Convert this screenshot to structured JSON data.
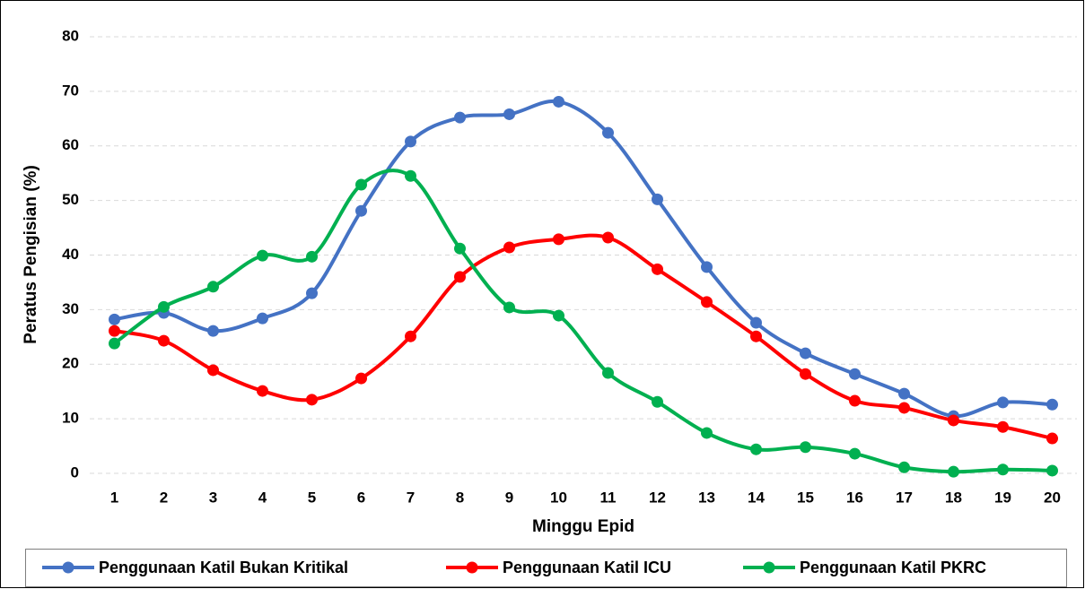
{
  "chart_data": {
    "type": "line",
    "xlabel": "Minggu Epid",
    "ylabel": "Peratus Pengisian (%)",
    "x": [
      1,
      2,
      3,
      4,
      5,
      6,
      7,
      8,
      9,
      10,
      11,
      12,
      13,
      14,
      15,
      16,
      17,
      18,
      19,
      20
    ],
    "xlim": [
      0.5,
      20.5
    ],
    "ylim": [
      0,
      80
    ],
    "yticks": [
      0,
      10,
      20,
      30,
      40,
      50,
      60,
      70,
      80
    ],
    "grid": true,
    "smooth": true,
    "legend": "bottom",
    "series": [
      {
        "name": "Penggunaan Katil Bukan Kritikal",
        "color": "#4472c4",
        "values": [
          28.2,
          29.4,
          26.1,
          28.4,
          33.0,
          48.1,
          60.8,
          65.2,
          65.8,
          68.1,
          62.4,
          50.2,
          37.8,
          27.6,
          22.0,
          18.2,
          14.6,
          10.5,
          13.0,
          12.6
        ]
      },
      {
        "name": "Penggunaan Katil ICU",
        "color": "#ff0000",
        "values": [
          26.1,
          24.3,
          18.9,
          15.1,
          13.5,
          17.4,
          25.1,
          36.0,
          41.4,
          42.9,
          43.2,
          37.4,
          31.4,
          25.1,
          18.2,
          13.3,
          12.0,
          9.7,
          8.5,
          6.4
        ]
      },
      {
        "name": "Penggunaan Katil PKRC",
        "color": "#00b050",
        "values": [
          23.8,
          30.5,
          34.2,
          39.9,
          39.7,
          52.9,
          54.5,
          41.2,
          30.4,
          28.9,
          18.4,
          13.1,
          7.4,
          4.4,
          4.8,
          3.6,
          1.1,
          0.3,
          0.7,
          0.5
        ]
      }
    ]
  }
}
